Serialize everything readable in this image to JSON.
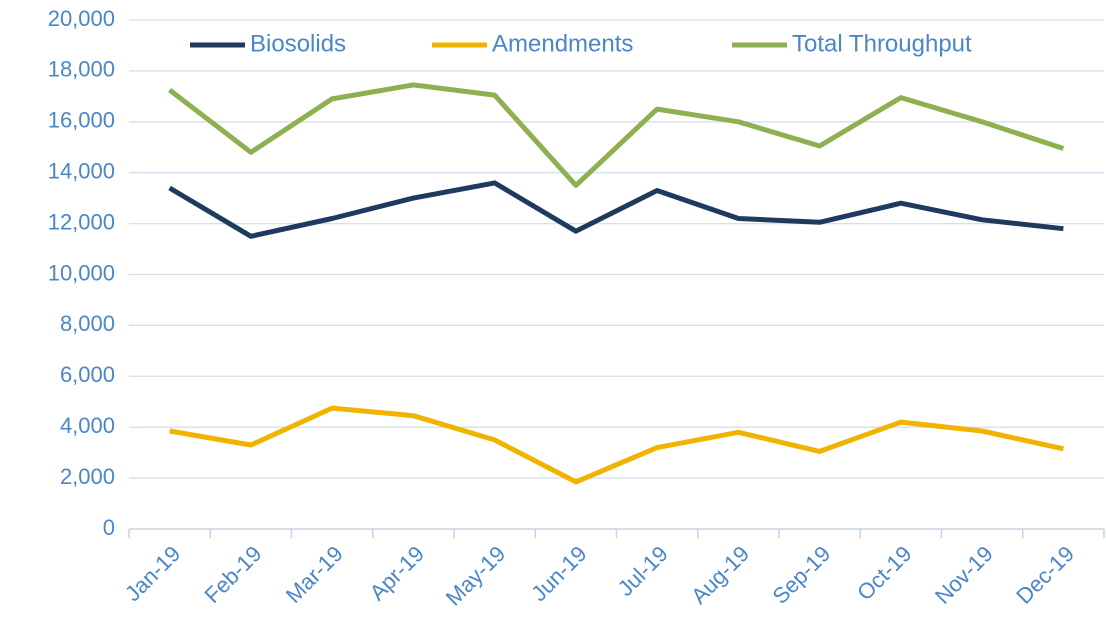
{
  "chart_data": {
    "type": "line",
    "categories": [
      "Jan-19",
      "Feb-19",
      "Mar-19",
      "Apr-19",
      "May-19",
      "Jun-19",
      "Jul-19",
      "Aug-19",
      "Sep-19",
      "Oct-19",
      "Nov-19",
      "Dec-19"
    ],
    "series": [
      {
        "name": "Biosolids",
        "color": "#1f3a5f",
        "values": [
          13400,
          11500,
          12200,
          13000,
          13600,
          11700,
          13300,
          12200,
          12050,
          12800,
          12150,
          11800
        ]
      },
      {
        "name": "Amendments",
        "color": "#f0b400",
        "values": [
          3850,
          3300,
          4750,
          4450,
          3500,
          1850,
          3200,
          3800,
          3050,
          4200,
          3850,
          3150
        ]
      },
      {
        "name": "Total Throughput",
        "color": "#8db050",
        "values": [
          17250,
          14800,
          16900,
          17450,
          17050,
          13500,
          16500,
          16000,
          15050,
          16950,
          16000,
          14950
        ]
      }
    ],
    "ylim": [
      0,
      20000
    ],
    "yticks": [
      0,
      {
        "value": 2000,
        "label": "2,000"
      },
      {
        "value": 4000,
        "label": "4,000"
      },
      {
        "value": 6000,
        "label": "6,000"
      },
      {
        "value": 8000,
        "label": "8,000"
      },
      {
        "value": 10000,
        "label": "10,000"
      },
      {
        "value": 12000,
        "label": "12,000"
      },
      {
        "value": 14000,
        "label": "14,000"
      },
      {
        "value": 16000,
        "label": "16,000"
      },
      {
        "value": 18000,
        "label": "18,000"
      },
      {
        "value": 20000,
        "label": "20,000"
      }
    ],
    "grid": true,
    "legend": "top"
  }
}
